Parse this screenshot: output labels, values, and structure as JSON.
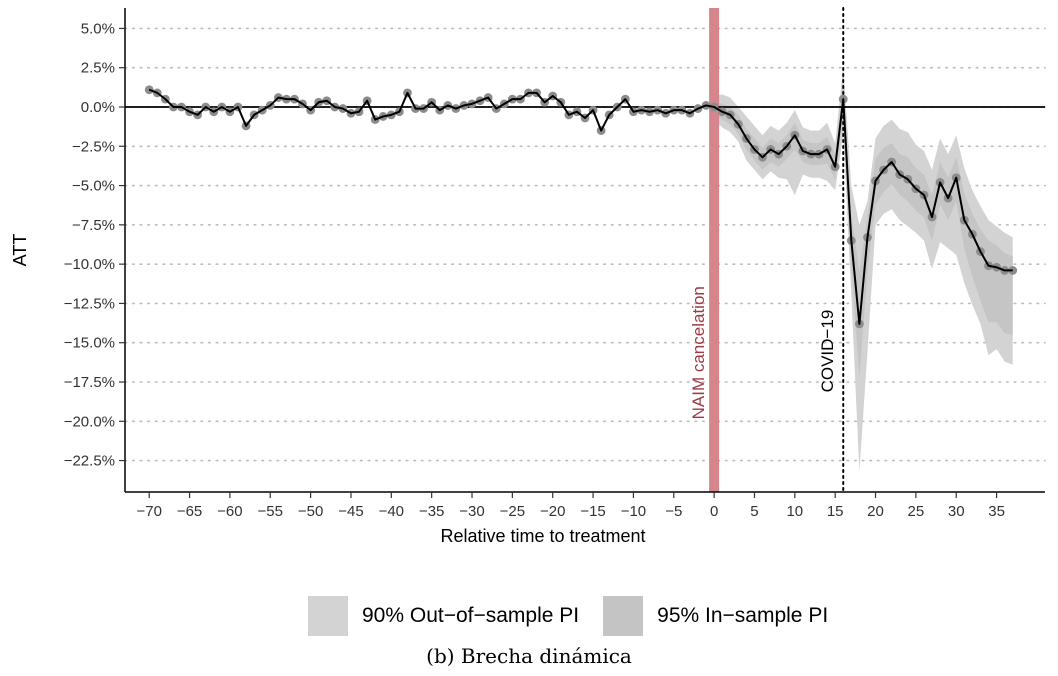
{
  "chart_data": {
    "type": "line",
    "xlabel": "Relative time to treatment",
    "ylabel": "ATT",
    "xlim": [
      -73,
      41
    ],
    "ylim": [
      -24.5,
      6.3
    ],
    "x_ticks": [
      -70,
      -65,
      -60,
      -55,
      -50,
      -45,
      -40,
      -35,
      -30,
      -25,
      -20,
      -15,
      -10,
      -5,
      0,
      5,
      10,
      15,
      20,
      25,
      30,
      35
    ],
    "y_ticks": [
      5.0,
      2.5,
      0.0,
      -2.5,
      -5.0,
      -7.5,
      -10.0,
      -12.5,
      -15.0,
      -17.5,
      -20.0,
      -22.5
    ],
    "y_tick_labels": [
      "5.0%",
      "2.5%",
      "0.0%",
      "−2.5%",
      "−5.0%",
      "−7.5%",
      "−10.0%",
      "−12.5%",
      "−15.0%",
      "−17.5%",
      "−20.0%",
      "−22.5%"
    ],
    "grid": "horizontal-dotted",
    "legend_position": "bottom",
    "series": [
      {
        "name": "ATT",
        "x": [
          -70,
          -69,
          -68,
          -67,
          -66,
          -65,
          -64,
          -63,
          -62,
          -61,
          -60,
          -59,
          -58,
          -57,
          -56,
          -55,
          -54,
          -53,
          -52,
          -51,
          -50,
          -49,
          -48,
          -47,
          -46,
          -45,
          -44,
          -43,
          -42,
          -41,
          -40,
          -39,
          -38,
          -37,
          -36,
          -35,
          -34,
          -33,
          -32,
          -31,
          -30,
          -29,
          -28,
          -27,
          -26,
          -25,
          -24,
          -23,
          -22,
          -21,
          -20,
          -19,
          -18,
          -17,
          -16,
          -15,
          -14,
          -13,
          -12,
          -11,
          -10,
          -9,
          -8,
          -7,
          -6,
          -5,
          -4,
          -3,
          -2,
          -1,
          0,
          1,
          2,
          3,
          4,
          5,
          6,
          7,
          8,
          9,
          10,
          11,
          12,
          13,
          14,
          15,
          16,
          17,
          18,
          19,
          20,
          21,
          22,
          23,
          24,
          25,
          26,
          27,
          28,
          29,
          30,
          31,
          32,
          33,
          34,
          35,
          36,
          37
        ],
        "y": [
          1.1,
          0.9,
          0.5,
          0.0,
          0.0,
          -0.3,
          -0.5,
          0.0,
          -0.3,
          0.0,
          -0.3,
          0.0,
          -1.2,
          -0.5,
          -0.2,
          0.1,
          0.6,
          0.5,
          0.5,
          0.2,
          -0.2,
          0.3,
          0.4,
          0.0,
          -0.1,
          -0.4,
          -0.3,
          0.4,
          -0.8,
          -0.6,
          -0.5,
          -0.3,
          0.9,
          -0.1,
          -0.1,
          0.3,
          -0.2,
          0.1,
          -0.1,
          0.1,
          0.2,
          0.4,
          0.6,
          -0.1,
          0.2,
          0.5,
          0.5,
          0.9,
          0.9,
          0.3,
          0.7,
          0.3,
          -0.5,
          -0.3,
          -0.7,
          -0.2,
          -1.5,
          -0.5,
          0.0,
          0.5,
          -0.3,
          -0.2,
          -0.3,
          -0.2,
          -0.4,
          -0.2,
          -0.2,
          -0.4,
          -0.1,
          0.1,
          0.0,
          -0.3,
          -0.5,
          -1.1,
          -2.0,
          -2.7,
          -3.2,
          -2.7,
          -3.0,
          -2.5,
          -1.8,
          -2.8,
          -3.0,
          -3.0,
          -2.7,
          -3.8,
          0.5,
          -8.5,
          -13.8,
          -8.3,
          -4.7,
          -4.0,
          -3.5,
          -4.3,
          -4.6,
          -5.2,
          -5.6,
          -7.0,
          -4.8,
          -5.8,
          -4.5,
          -7.2,
          -8.1,
          -9.2,
          -10.1,
          -10.2,
          -10.4,
          -10.4
        ]
      }
    ],
    "intervals": [
      {
        "name": "90% Out−of−sample PI",
        "color": "#d3d3d3",
        "x": [
          0,
          1,
          2,
          3,
          4,
          5,
          6,
          7,
          8,
          9,
          10,
          11,
          12,
          13,
          14,
          15,
          16,
          17,
          18,
          19,
          20,
          21,
          22,
          23,
          24,
          25,
          26,
          27,
          28,
          29,
          30,
          31,
          32,
          33,
          34,
          35,
          36,
          37
        ],
        "upper": [
          0.7,
          0.8,
          0.6,
          0.0,
          -0.6,
          -1.2,
          -1.8,
          -1.2,
          -1.5,
          -1.0,
          -0.2,
          -1.3,
          -1.5,
          -1.5,
          -1.0,
          -2.3,
          2.6,
          -5.0,
          -7.5,
          -6.0,
          -2.0,
          -1.2,
          -0.8,
          -1.4,
          -1.6,
          -2.4,
          -2.8,
          -4.0,
          -2.0,
          -3.0,
          -1.8,
          -3.9,
          -5.3,
          -6.3,
          -7.2,
          -7.6,
          -8.0,
          -8.3
        ],
        "lower": [
          -0.8,
          -1.3,
          -1.6,
          -2.2,
          -3.4,
          -4.0,
          -4.6,
          -4.1,
          -4.5,
          -4.6,
          -5.6,
          -4.3,
          -4.5,
          -4.5,
          -4.7,
          -5.3,
          -1.7,
          -12.0,
          -23.2,
          -15.6,
          -7.5,
          -6.8,
          -6.5,
          -7.2,
          -7.6,
          -8.0,
          -8.5,
          -10.3,
          -8.6,
          -9.0,
          -9.4,
          -11.2,
          -12.6,
          -13.8,
          -15.8,
          -15.4,
          -16.2,
          -16.4
        ]
      },
      {
        "name": "95% In−sample PI",
        "color": "#c4c4c4",
        "x": [
          0,
          1,
          2,
          3,
          4,
          5,
          6,
          7,
          8,
          9,
          10,
          11,
          12,
          13,
          14,
          15,
          16,
          17,
          18,
          19,
          20,
          21,
          22,
          23,
          24,
          25,
          26,
          27,
          28,
          29,
          30,
          31,
          32,
          33,
          34,
          35,
          36,
          37
        ],
        "upper": [
          0.3,
          0.2,
          0.0,
          -0.5,
          -1.4,
          -2.0,
          -2.6,
          -2.0,
          -2.3,
          -1.8,
          -1.0,
          -2.1,
          -2.3,
          -2.3,
          -1.9,
          -3.0,
          1.5,
          -6.8,
          -10.5,
          -7.0,
          -3.3,
          -2.6,
          -2.3,
          -3.0,
          -3.2,
          -3.9,
          -4.3,
          -5.6,
          -3.5,
          -4.5,
          -3.2,
          -5.5,
          -6.8,
          -7.8,
          -8.5,
          -8.8,
          -9.3,
          -9.5
        ],
        "lower": [
          -0.4,
          -0.8,
          -1.1,
          -1.7,
          -2.7,
          -3.4,
          -4.0,
          -3.5,
          -3.8,
          -3.3,
          -2.7,
          -3.5,
          -3.7,
          -3.7,
          -3.6,
          -4.6,
          -0.6,
          -10.2,
          -17.2,
          -10.5,
          -6.2,
          -5.4,
          -4.9,
          -5.6,
          -6.0,
          -6.6,
          -7.0,
          -8.5,
          -6.2,
          -7.2,
          -6.0,
          -9.0,
          -10.8,
          -12.3,
          -13.7,
          -13.7,
          -14.4,
          -14.5
        ]
      }
    ],
    "annotations": [
      {
        "label": "NAIM cancelation",
        "x": 0,
        "style": "vertical-band",
        "color": "#d4868c",
        "text_color": "#9c3a42"
      },
      {
        "label": "COVID−19",
        "x": 16,
        "style": "vertical-dotted-line",
        "color": "#000000",
        "text_color": "#000000"
      }
    ]
  },
  "legend": {
    "items": [
      {
        "label": "90% Out−of−sample PI",
        "color": "#d3d3d3"
      },
      {
        "label": "95% In−sample PI",
        "color": "#c4c4c4"
      }
    ]
  },
  "caption": "(b) Brecha dinámica"
}
